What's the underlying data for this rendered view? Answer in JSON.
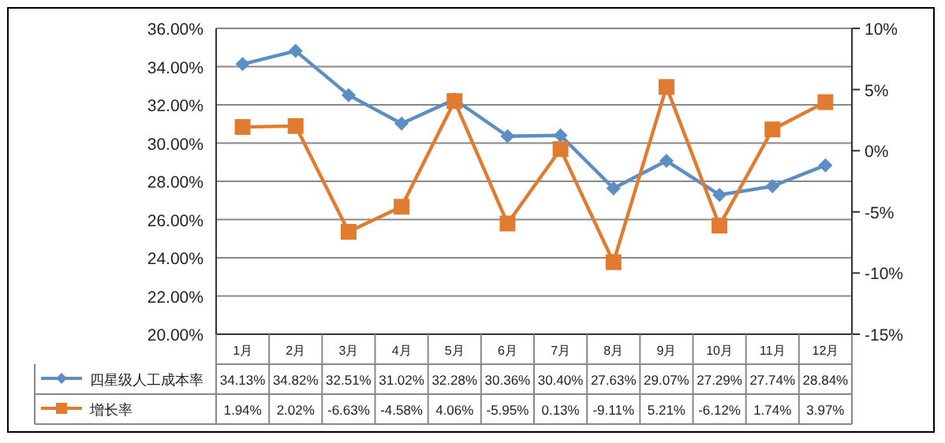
{
  "chart_data": {
    "type": "line",
    "categories": [
      "1月",
      "2月",
      "3月",
      "4月",
      "5月",
      "6月",
      "7月",
      "8月",
      "9月",
      "10月",
      "11月",
      "12月"
    ],
    "series": [
      {
        "name": "四星级人工成本率",
        "color": "#5b8ec2",
        "marker": "diamond",
        "values": [
          34.13,
          34.82,
          32.51,
          31.02,
          32.28,
          30.36,
          30.4,
          27.63,
          29.07,
          27.29,
          27.74,
          28.84
        ],
        "value_labels": [
          "34.13%",
          "34.82%",
          "32.51%",
          "31.02%",
          "32.28%",
          "30.36%",
          "30.40%",
          "27.63%",
          "29.07%",
          "27.29%",
          "27.74%",
          "28.84%"
        ]
      },
      {
        "name": "增长率",
        "color": "#e07b30",
        "marker": "square",
        "axis": "y2",
        "values": [
          1.94,
          2.02,
          -6.63,
          -4.58,
          4.06,
          -5.95,
          0.13,
          -9.11,
          5.21,
          -6.12,
          1.74,
          3.97
        ],
        "value_labels": [
          "1.94%",
          "2.02%",
          "-6.63%",
          "-4.58%",
          "4.06%",
          "-5.95%",
          "0.13%",
          "-9.11%",
          "5.21%",
          "-6.12%",
          "1.74%",
          "3.97%"
        ]
      }
    ],
    "ylim": [
      20,
      36
    ],
    "yticks": [
      {
        "value": 20,
        "label": "20.00%"
      },
      {
        "value": 22,
        "label": "22.00%"
      },
      {
        "value": 24,
        "label": "24.00%"
      },
      {
        "value": 26,
        "label": "26.00%"
      },
      {
        "value": 28,
        "label": "28.00%"
      },
      {
        "value": 30,
        "label": "30.00%"
      },
      {
        "value": 32,
        "label": "32.00%"
      },
      {
        "value": 34,
        "label": "34.00%"
      },
      {
        "value": 36,
        "label": "36.00%"
      }
    ],
    "y2lim": [
      -15,
      10
    ],
    "y2ticks": [
      {
        "value": -15,
        "label": "-15%"
      },
      {
        "value": -10,
        "label": "-10%"
      },
      {
        "value": -5,
        "label": "-5%"
      },
      {
        "value": 0,
        "label": "0%"
      },
      {
        "value": 5,
        "label": "5%"
      },
      {
        "value": 10,
        "label": "10%"
      }
    ],
    "grid": "y",
    "legend": "bottom"
  }
}
